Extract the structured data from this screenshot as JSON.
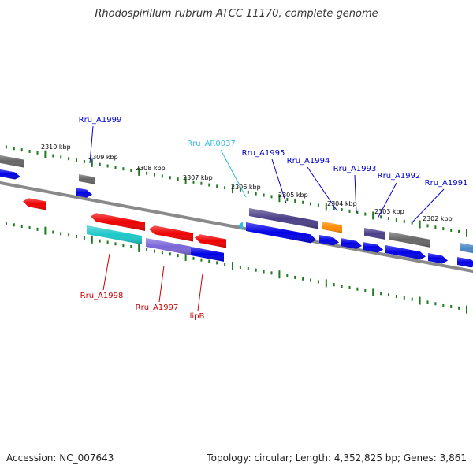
{
  "title": "Rhodospirillum rubrum ATCC 11170, complete genome",
  "accession_label": "Accession: NC_007643",
  "topology_label": "Topology: circular; Length: 4,352,825 bp; Genes: 3,861",
  "colors": {
    "backbone": "#8a8a8a",
    "tick": "#1f7a1f",
    "cds_blue": "#0000e6",
    "cds_red": "#ee0000",
    "cds_cyan": "#1cc8c8",
    "cds_violet": "#7b66d9",
    "cds_darkviolet": "#4a3f88",
    "cds_orange": "#ff8c00",
    "cds_gray": "#666666",
    "cds_steel": "#4a86c5",
    "label_blue": "#0000cc",
    "label_red": "#cc0000",
    "label_cyan": "#33bbdd"
  },
  "ruler": [
    "2310 kbp",
    "2309 kbp",
    "2308 kbp",
    "2307 kbp",
    "2306 kbp",
    "2305 kbp",
    "2304 kbp",
    "2303 kbp",
    "2302 kbp"
  ],
  "gene_labels": {
    "top": [
      "Rru_A1999",
      "Rru_AR0037",
      "Rru_A1995",
      "Rru_A1994",
      "Rru_A1993",
      "Rru_A1992",
      "Rru_A1991"
    ],
    "bottom": [
      "Rru_A1998",
      "Rru_A1997",
      "lipB"
    ]
  }
}
